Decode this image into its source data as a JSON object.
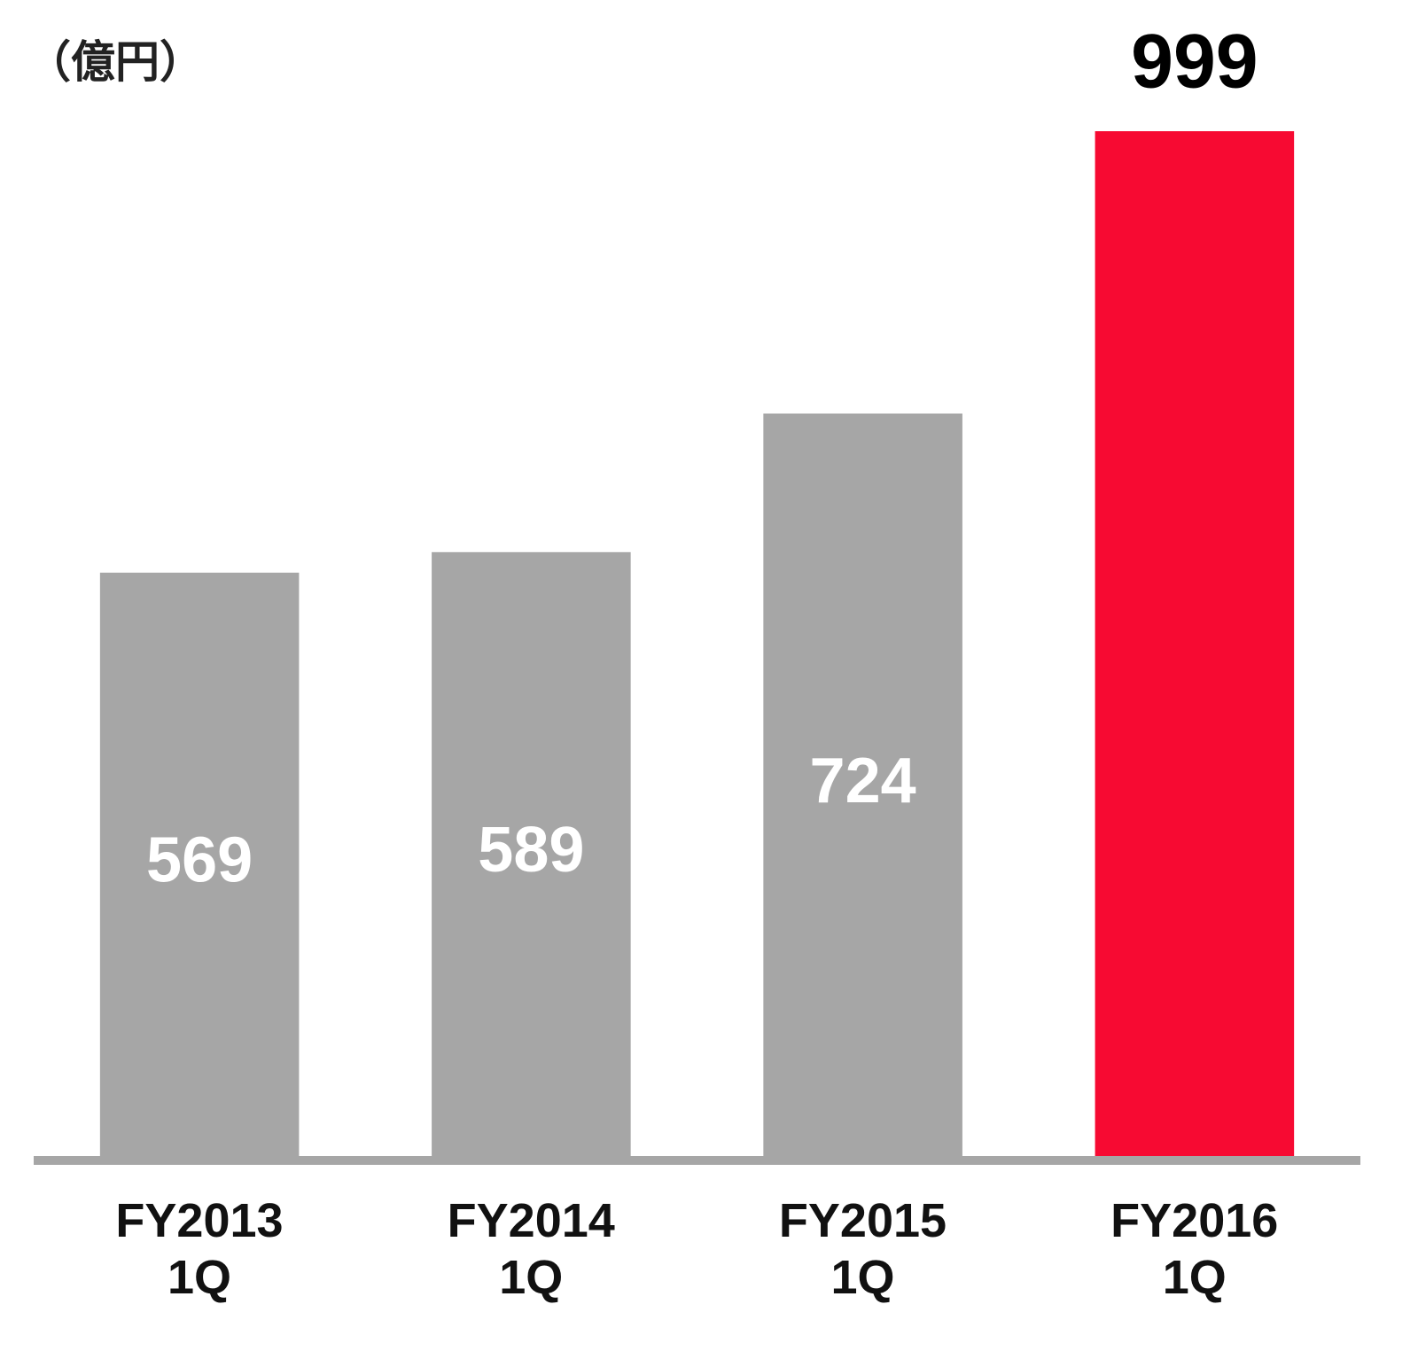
{
  "chart_data": {
    "type": "bar",
    "unit_label": "（億円）",
    "categories": [
      "FY2013\n1Q",
      "FY2014\n1Q",
      "FY2015\n1Q",
      "FY2016\n1Q"
    ],
    "values": [
      569,
      589,
      724,
      999
    ],
    "colors": [
      "#a6a6a6",
      "#a6a6a6",
      "#a6a6a6",
      "#f70a32"
    ],
    "label_colors": [
      "#ffffff",
      "#ffffff",
      "#ffffff",
      "#000000"
    ],
    "label_positions": [
      "center",
      "center",
      "center",
      "outside"
    ],
    "axis_color": "#a6a6a6"
  }
}
